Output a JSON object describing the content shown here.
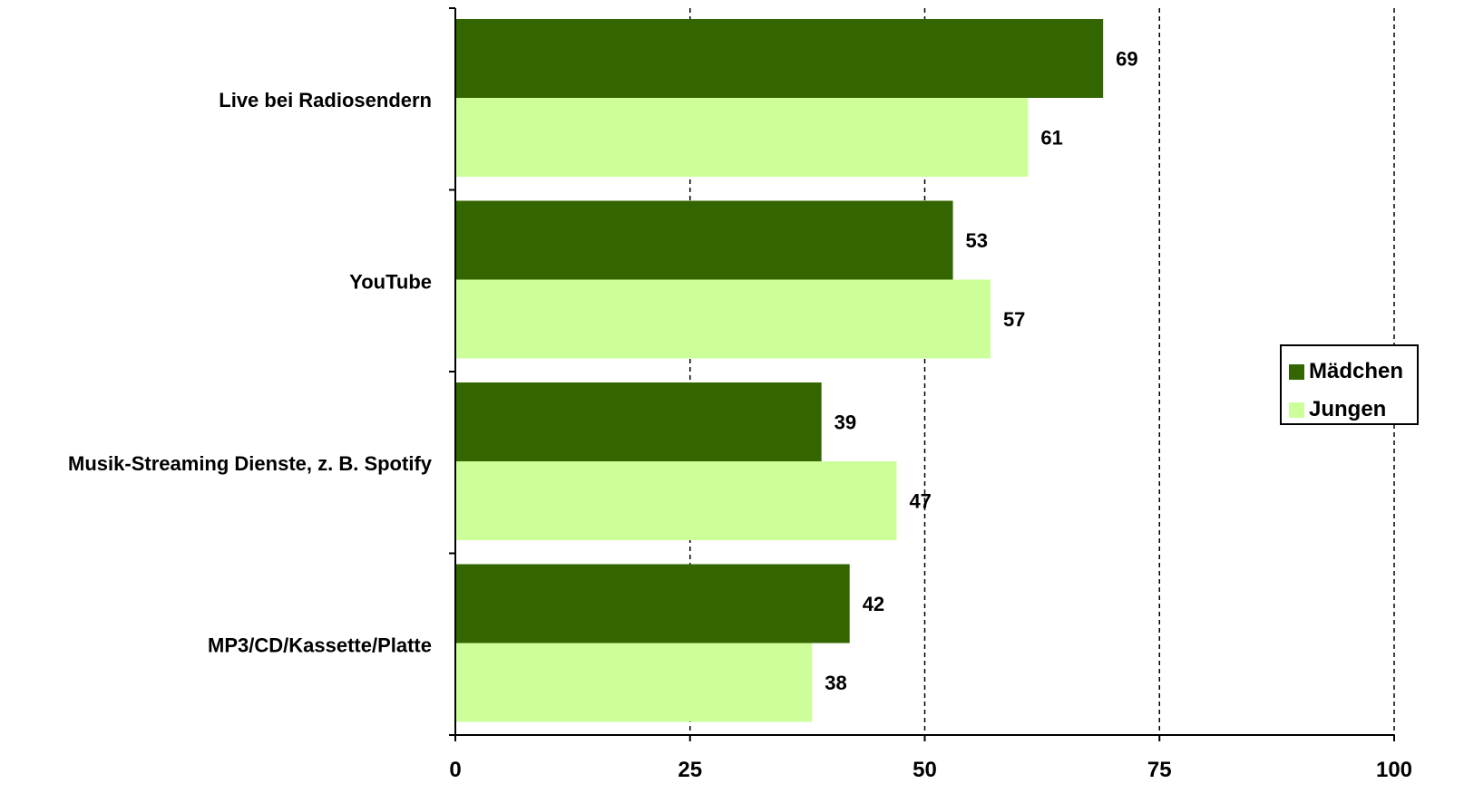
{
  "chart_data": {
    "type": "bar",
    "orientation": "horizontal",
    "categories": [
      "Live bei Radiosendern",
      "YouTube",
      "Musik-Streaming Dienste, z. B. Spotify",
      "MP3/CD/Kassette/Platte"
    ],
    "series": [
      {
        "name": "Mädchen",
        "values": [
          69,
          53,
          39,
          42
        ],
        "color": "#336600"
      },
      {
        "name": "Jungen",
        "values": [
          61,
          57,
          47,
          38
        ],
        "color": "#ccff99"
      }
    ],
    "xlim": [
      0,
      100
    ],
    "xticks": [
      0,
      25,
      50,
      75,
      100
    ],
    "grid": "vertical dashed",
    "legend_position": "right"
  }
}
